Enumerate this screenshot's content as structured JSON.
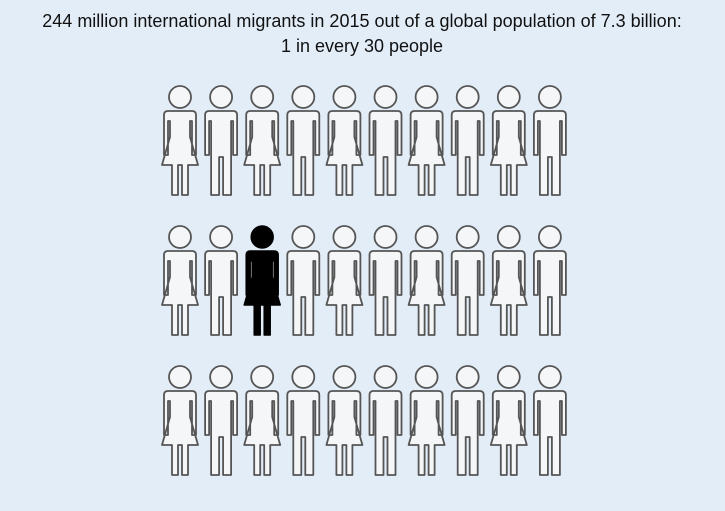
{
  "title_lines": [
    "244 million international migrants in 2015 out of a global population of 7.3 billion:",
    "1 in every 30 people"
  ]
}
